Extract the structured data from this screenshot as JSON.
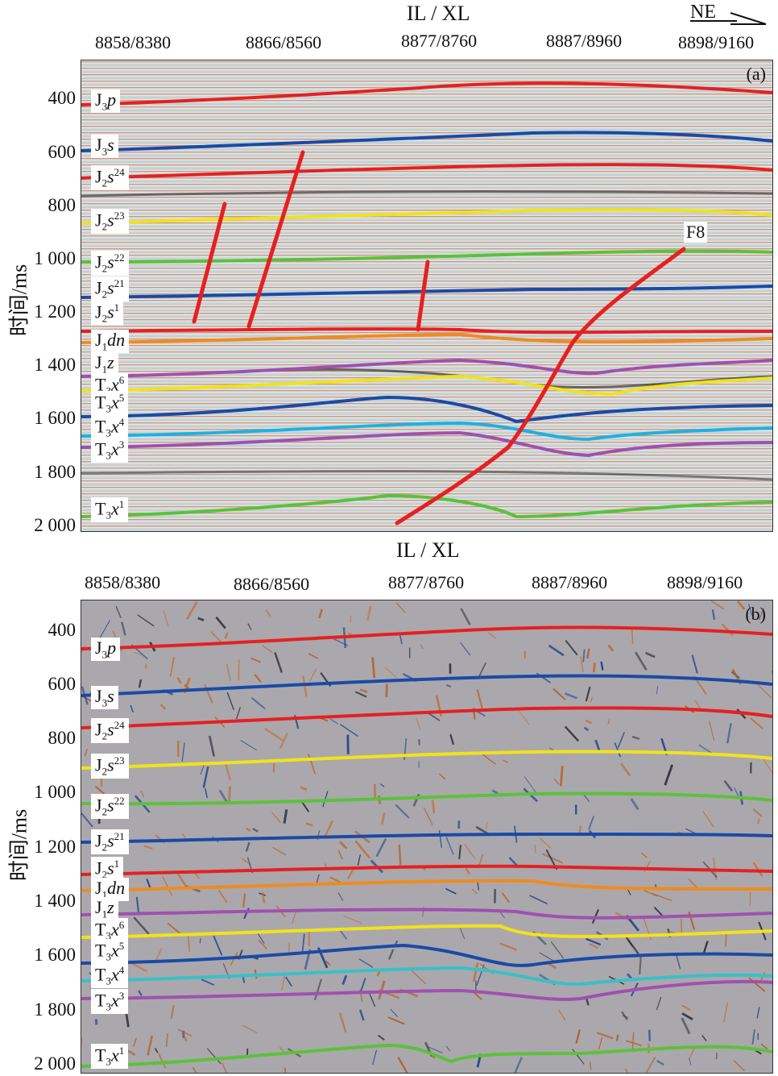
{
  "compass": {
    "label": "NE"
  },
  "panels": [
    {
      "id": "a",
      "tag": "(a)",
      "x_title": "IL / XL",
      "x_ticks": [
        "8858/8380",
        "8866/8560",
        "8877/8760",
        "8887/8960",
        "8898/9160"
      ],
      "y_title": "时间/ms",
      "y_ticks": [
        "400",
        "600",
        "800",
        "1 000",
        "1 200",
        "1 400",
        "1 600",
        "1 800",
        "2 000"
      ],
      "fault_label": "F8",
      "horizons": [
        {
          "base": "J",
          "sub": "3",
          "it": "p",
          "sup": "",
          "color": "#e62020"
        },
        {
          "base": "J",
          "sub": "3",
          "it": "s",
          "sup": "",
          "color": "#1a4aa8"
        },
        {
          "base": "J",
          "sub": "2",
          "it": "s",
          "sup": "24",
          "color": "#e62020"
        },
        {
          "base": "J",
          "sub": "2",
          "it": "s",
          "sup": "23",
          "color": "#f2e21a"
        },
        {
          "base": "J",
          "sub": "2",
          "it": "s",
          "sup": "22",
          "color": "#5cc13a"
        },
        {
          "base": "J",
          "sub": "2",
          "it": "s",
          "sup": "21",
          "color": "#1a4aa8"
        },
        {
          "base": "J",
          "sub": "2",
          "it": "s",
          "sup": "1",
          "color": "#e62020"
        },
        {
          "base": "J",
          "sub": "1",
          "it": "dn",
          "sup": "",
          "color": "#f08a20"
        },
        {
          "base": "J",
          "sub": "1",
          "it": "z",
          "sup": "",
          "color": "#a050b0"
        },
        {
          "base": "T",
          "sub": "3",
          "it": "x",
          "sup": "6",
          "color": "#f2e21a"
        },
        {
          "base": "T",
          "sub": "3",
          "it": "x",
          "sup": "5",
          "color": "#1a4aa8"
        },
        {
          "base": "T",
          "sub": "3",
          "it": "x",
          "sup": "4",
          "color": "#20b0e0"
        },
        {
          "base": "T",
          "sub": "3",
          "it": "x",
          "sup": "3",
          "color": "#a050b0"
        },
        {
          "base": "T",
          "sub": "3",
          "it": "x",
          "sup": "1",
          "color": "#5cc13a"
        }
      ]
    },
    {
      "id": "b",
      "tag": "(b)",
      "x_title": "IL / XL",
      "x_ticks": [
        "8858/8380",
        "8866/8560",
        "8877/8760",
        "8887/8960",
        "8898/9160"
      ],
      "y_title": "时间/ms",
      "y_ticks": [
        "400",
        "600",
        "800",
        "1 000",
        "1 200",
        "1 400",
        "1 600",
        "1 800",
        "2 000"
      ],
      "horizons": [
        {
          "base": "J",
          "sub": "3",
          "it": "p",
          "sup": "",
          "color": "#e62020"
        },
        {
          "base": "J",
          "sub": "3",
          "it": "s",
          "sup": "",
          "color": "#1a4aa8"
        },
        {
          "base": "J",
          "sub": "2",
          "it": "s",
          "sup": "24",
          "color": "#e62020"
        },
        {
          "base": "J",
          "sub": "2",
          "it": "s",
          "sup": "23",
          "color": "#f2e21a"
        },
        {
          "base": "J",
          "sub": "2",
          "it": "s",
          "sup": "22",
          "color": "#5cc13a"
        },
        {
          "base": "J",
          "sub": "2",
          "it": "s",
          "sup": "21",
          "color": "#1a4aa8"
        },
        {
          "base": "J",
          "sub": "2",
          "it": "s",
          "sup": "1",
          "color": "#e62020"
        },
        {
          "base": "J",
          "sub": "1",
          "it": "dn",
          "sup": "",
          "color": "#f08a20"
        },
        {
          "base": "J",
          "sub": "1",
          "it": "z",
          "sup": "",
          "color": "#a050b0"
        },
        {
          "base": "T",
          "sub": "3",
          "it": "x",
          "sup": "6",
          "color": "#f2e21a"
        },
        {
          "base": "T",
          "sub": "3",
          "it": "x",
          "sup": "5",
          "color": "#1a4aa8"
        },
        {
          "base": "T",
          "sub": "3",
          "it": "x",
          "sup": "4",
          "color": "#38c0c8"
        },
        {
          "base": "T",
          "sub": "3",
          "it": "x",
          "sup": "3",
          "color": "#a050b0"
        },
        {
          "base": "T",
          "sub": "3",
          "it": "x",
          "sup": "1",
          "color": "#5cc13a"
        }
      ]
    }
  ]
}
